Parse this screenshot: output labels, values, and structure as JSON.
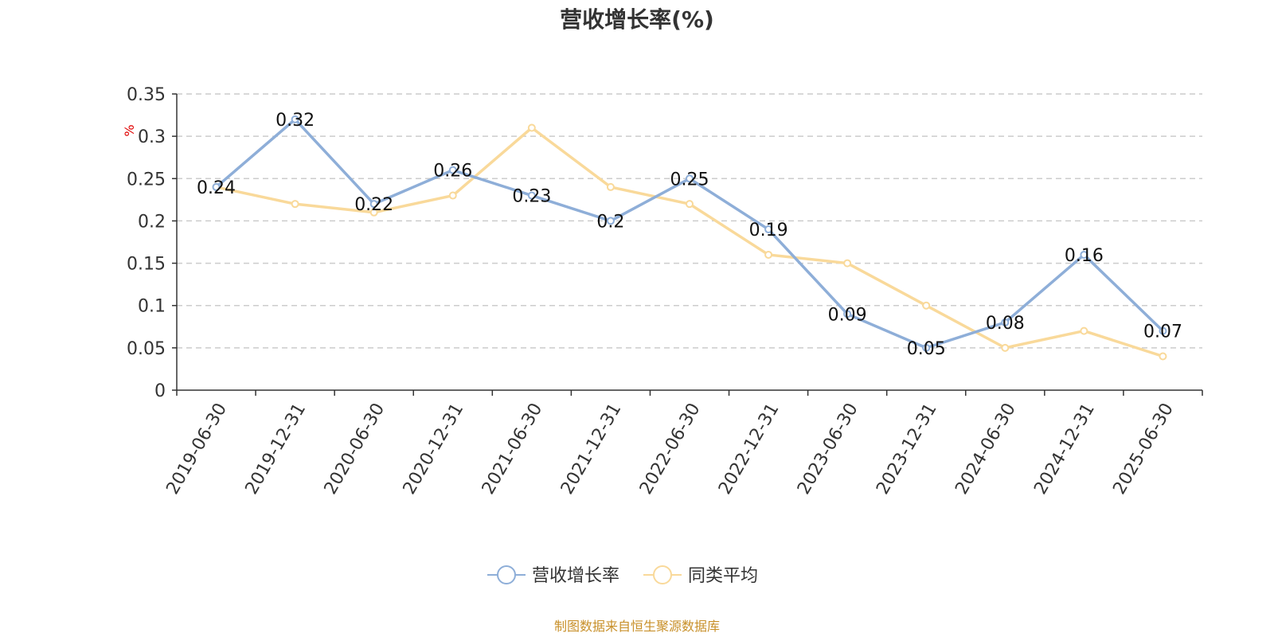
{
  "chart_data": {
    "type": "line",
    "title": "营收增长率(%)",
    "ylabel": "%",
    "categories": [
      "2019-06-30",
      "2019-12-31",
      "2020-06-30",
      "2020-12-31",
      "2021-06-30",
      "2021-12-31",
      "2022-06-30",
      "2022-12-31",
      "2023-06-30",
      "2023-12-31",
      "2024-06-30",
      "2024-12-31",
      "2025-06-30"
    ],
    "ylim": [
      0,
      0.35
    ],
    "yticks": [
      "0",
      "0.05",
      "0.1",
      "0.15",
      "0.2",
      "0.25",
      "0.3",
      "0.35"
    ],
    "grid": true,
    "legend_position": "bottom",
    "series": [
      {
        "name": "营收增长率",
        "color": "#8eaed8",
        "values": [
          0.24,
          0.32,
          0.22,
          0.26,
          0.23,
          0.2,
          0.25,
          0.19,
          0.09,
          0.05,
          0.08,
          0.16,
          0.07
        ],
        "labels": [
          "0.24",
          "0.32",
          "0.22",
          "0.26",
          "0.23",
          "0.2",
          "0.25",
          "0.19",
          "0.09",
          "0.05",
          "0.08",
          "0.16",
          "0.07"
        ]
      },
      {
        "name": "同类平均",
        "color": "#f9d99a",
        "values": [
          0.24,
          0.22,
          0.21,
          0.23,
          0.31,
          0.24,
          0.22,
          0.16,
          0.15,
          0.1,
          0.05,
          0.07,
          0.04
        ]
      }
    ]
  },
  "source": "制图数据来自恒生聚源数据库"
}
